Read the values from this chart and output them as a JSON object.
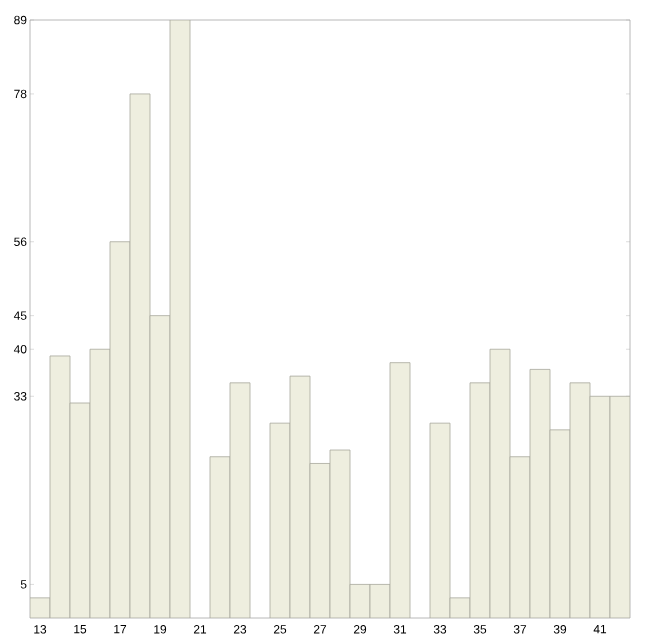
{
  "chart_data": {
    "type": "bar",
    "categories": [
      "13",
      null,
      "15",
      null,
      "17",
      null,
      "19",
      null,
      "21",
      null,
      "23",
      null,
      "25",
      null,
      "27",
      null,
      "29",
      null,
      "31",
      null,
      "33",
      null,
      "35",
      null,
      "37",
      null,
      "39",
      null,
      "41",
      null
    ],
    "values": [
      3,
      39,
      32,
      40,
      56,
      78,
      45,
      89,
      null,
      24,
      35,
      null,
      29,
      36,
      23,
      25,
      5,
      5,
      38,
      null,
      29,
      3,
      35,
      40,
      24,
      37,
      28,
      35,
      33,
      33
    ],
    "color": "#eeeedf",
    "ylim": [
      0,
      89
    ],
    "yticks": [
      5,
      33,
      40,
      45,
      56,
      78,
      89
    ],
    "grid": false
  }
}
